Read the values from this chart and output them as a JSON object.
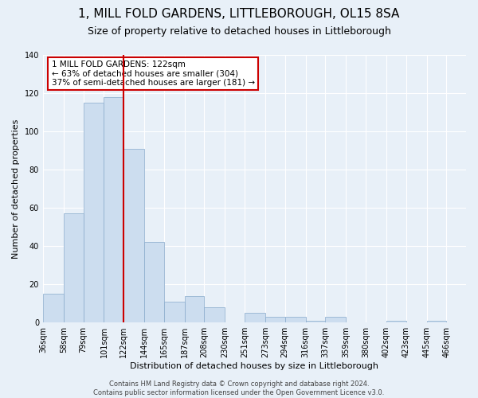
{
  "title": "1, MILL FOLD GARDENS, LITTLEBOROUGH, OL15 8SA",
  "subtitle": "Size of property relative to detached houses in Littleborough",
  "xlabel": "Distribution of detached houses by size in Littleborough",
  "ylabel": "Number of detached properties",
  "bin_labels": [
    "36sqm",
    "58sqm",
    "79sqm",
    "101sqm",
    "122sqm",
    "144sqm",
    "165sqm",
    "187sqm",
    "208sqm",
    "230sqm",
    "251sqm",
    "273sqm",
    "294sqm",
    "316sqm",
    "337sqm",
    "359sqm",
    "380sqm",
    "402sqm",
    "423sqm",
    "445sqm",
    "466sqm"
  ],
  "bar_heights": [
    15,
    57,
    115,
    118,
    91,
    42,
    11,
    14,
    8,
    0,
    5,
    3,
    3,
    1,
    3,
    0,
    0,
    1,
    0,
    1
  ],
  "bar_color": "#ccddef",
  "bar_edgecolor": "#88aacc",
  "vline_x_idx": 4,
  "vline_color": "#cc0000",
  "ylim": [
    0,
    140
  ],
  "yticks": [
    0,
    20,
    40,
    60,
    80,
    100,
    120,
    140
  ],
  "annotation_title": "1 MILL FOLD GARDENS: 122sqm",
  "annotation_line1": "← 63% of detached houses are smaller (304)",
  "annotation_line2": "37% of semi-detached houses are larger (181) →",
  "annotation_box_color": "#cc0000",
  "annotation_bg_color": "#ffffff",
  "footer_line1": "Contains HM Land Registry data © Crown copyright and database right 2024.",
  "footer_line2": "Contains public sector information licensed under the Open Government Licence v3.0.",
  "background_color": "#e8f0f8",
  "grid_color": "#ffffff",
  "title_fontsize": 11,
  "subtitle_fontsize": 9,
  "xlabel_fontsize": 8,
  "ylabel_fontsize": 8,
  "tick_fontsize": 7,
  "annot_fontsize": 7.5,
  "footer_fontsize": 6
}
